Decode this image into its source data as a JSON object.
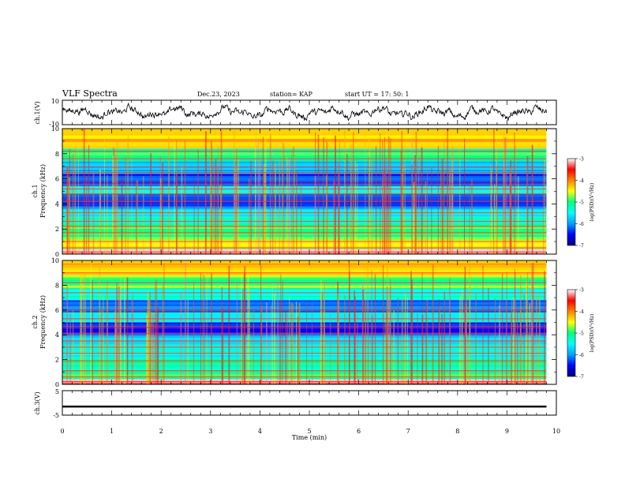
{
  "header": {
    "title": "VLF Spectra",
    "date": "Dec.23, 2023",
    "station": "station= KAP",
    "start": "start  UT  =   17: 50: 1"
  },
  "colors": {
    "trace": "#000000",
    "colormap": [
      "#000080",
      "#0000ff",
      "#00a0ff",
      "#00ffff",
      "#00ff80",
      "#ffff00",
      "#ff8000",
      "#ff0000",
      "#ffffff"
    ]
  },
  "chart_data": [
    {
      "type": "line",
      "panel": "ch1-waveform",
      "ylabel": "ch.1(V)",
      "yticks": [
        "10",
        "-10"
      ],
      "ylim": [
        -10,
        10
      ],
      "xlim": [
        0,
        9.8
      ],
      "description_values": "dense noisy oscillation of roughly ±5 V across the record"
    },
    {
      "type": "heatmap",
      "panel": "ch1-spectrogram",
      "ylabel": "Frequency (kHz)",
      "channel_label": "ch.1",
      "yticks": [
        "0",
        "2",
        "4",
        "6",
        "8",
        "10"
      ],
      "ylim": [
        0,
        10
      ],
      "xlim": [
        0,
        9.8
      ],
      "bands": [
        {
          "f0": 0.0,
          "f1": 0.4,
          "level": -3.2
        },
        {
          "f0": 0.4,
          "f1": 1.2,
          "level": -4.6
        },
        {
          "f0": 1.2,
          "f1": 2.2,
          "level": -4.9
        },
        {
          "f0": 2.2,
          "f1": 3.0,
          "level": -5.3
        },
        {
          "f0": 3.0,
          "f1": 3.6,
          "level": -5.6
        },
        {
          "f0": 3.6,
          "f1": 4.8,
          "level": -6.2
        },
        {
          "f0": 4.8,
          "f1": 5.4,
          "level": -5.5
        },
        {
          "f0": 5.4,
          "f1": 6.4,
          "level": -6.3
        },
        {
          "f0": 6.4,
          "f1": 7.4,
          "level": -5.8
        },
        {
          "f0": 7.4,
          "f1": 8.4,
          "level": -5.0
        },
        {
          "f0": 8.4,
          "f1": 10.0,
          "level": -4.2
        }
      ],
      "lines_khz": [
        0.2,
        0.5,
        1.0,
        1.7,
        2.2,
        2.6,
        3.3,
        4.2,
        4.8,
        5.2,
        5.6,
        6.5,
        6.9,
        7.6,
        8.2
      ],
      "colorbar": {
        "label": "log(PSD)(V²/Hz)",
        "ticks": [
          "-3",
          "-4",
          "-5",
          "-6",
          "-7"
        ],
        "range": [
          -7,
          -3
        ]
      }
    },
    {
      "type": "heatmap",
      "panel": "ch2-spectrogram",
      "ylabel": "Frequency (kHz)",
      "channel_label": "ch.2",
      "yticks": [
        "0",
        "2",
        "4",
        "6",
        "8",
        "10"
      ],
      "ylim": [
        0,
        10
      ],
      "xlim": [
        0,
        9.8
      ],
      "bands": [
        {
          "f0": 0.0,
          "f1": 0.4,
          "level": -3.2
        },
        {
          "f0": 0.4,
          "f1": 1.2,
          "level": -5.0
        },
        {
          "f0": 1.2,
          "f1": 2.2,
          "level": -5.2
        },
        {
          "f0": 2.2,
          "f1": 3.2,
          "level": -5.4
        },
        {
          "f0": 3.2,
          "f1": 4.0,
          "level": -5.8
        },
        {
          "f0": 4.0,
          "f1": 5.0,
          "level": -6.3
        },
        {
          "f0": 5.0,
          "f1": 5.8,
          "level": -5.4
        },
        {
          "f0": 5.8,
          "f1": 6.8,
          "level": -6.2
        },
        {
          "f0": 6.8,
          "f1": 7.8,
          "level": -5.3
        },
        {
          "f0": 7.8,
          "f1": 8.8,
          "level": -4.8
        },
        {
          "f0": 8.8,
          "f1": 10.0,
          "level": -4.3
        }
      ],
      "lines_khz": [
        0.2,
        0.6,
        1.1,
        1.9,
        2.5,
        3.0,
        3.5,
        4.1,
        4.6,
        5.3,
        6.0,
        7.4,
        8.2,
        9.0
      ],
      "colorbar": {
        "label": "log(PSD)(V²/Hz)",
        "ticks": [
          "-3",
          "-4",
          "-5",
          "-6",
          "-7"
        ],
        "range": [
          -7,
          -3
        ]
      }
    },
    {
      "type": "line",
      "panel": "ch3-waveform",
      "ylabel": "ch.3(V)",
      "yticks": [
        "5",
        "-5"
      ],
      "ylim": [
        -5,
        5
      ],
      "xlim": [
        0,
        9.8
      ],
      "level": -1.5,
      "xlabel": "Time (min)",
      "xticks": [
        "0",
        "1",
        "2",
        "3",
        "4",
        "5",
        "6",
        "7",
        "8",
        "9",
        "10"
      ],
      "xaxis_range": [
        0,
        10
      ]
    }
  ]
}
